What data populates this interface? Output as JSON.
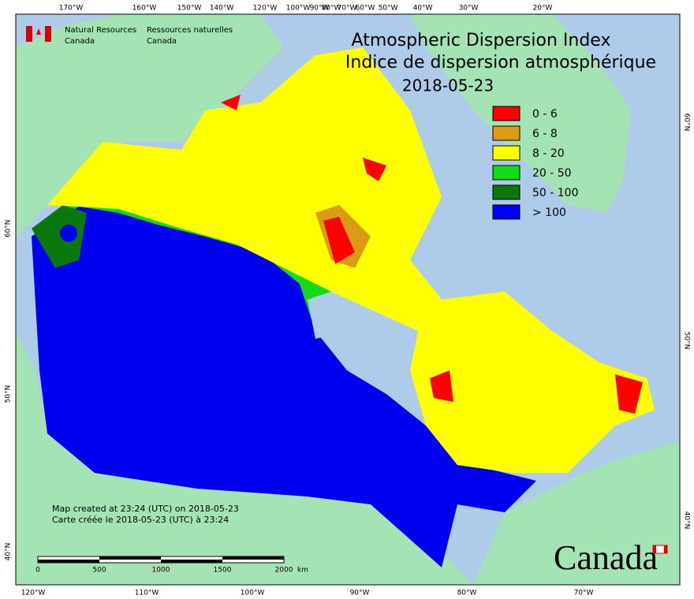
{
  "header": {
    "agency_en": [
      "Natural Resources",
      "Canada"
    ],
    "agency_fr": [
      "Ressources naturelles",
      "Canada"
    ]
  },
  "title": [
    "Atmospheric Dispersion Index",
    "Indice de dispersion atmosphérique",
    "2018-05-23"
  ],
  "legend": [
    {
      "label": "0 - 6",
      "color": "#ff0000"
    },
    {
      "label": "6 - 8",
      "color": "#dc9b14"
    },
    {
      "label": "8 - 20",
      "color": "#ffff00"
    },
    {
      "label": "20 - 50",
      "color": "#14dc14"
    },
    {
      "label": "50 - 100",
      "color": "#0a780a"
    },
    {
      "label": "> 100",
      "color": "#0000ff"
    }
  ],
  "top_labels": [
    "170°W",
    "160°W",
    "150°W",
    "140°W",
    "120°W",
    "100°W",
    "90°W",
    "80°W",
    "70°W",
    "60°W",
    "50°W",
    "40°W",
    "30°W",
    "20°W"
  ],
  "bottom_labels": [
    "120°W",
    "110°W",
    "100°W",
    "90°W",
    "80°W",
    "70°W"
  ],
  "left_labels": [
    "60°N",
    "50°N",
    "40°N"
  ],
  "right_labels": [
    "60°N",
    "50°N",
    "40°N"
  ],
  "notes": [
    "Map created at 23:24 (UTC) on 2018-05-23",
    "Carte créée le 2018-05-23 (UTC) à 23:24"
  ],
  "scale": [
    "0",
    "500",
    "1000",
    "1500",
    "2000",
    "km"
  ],
  "wordmark": "Canada"
}
